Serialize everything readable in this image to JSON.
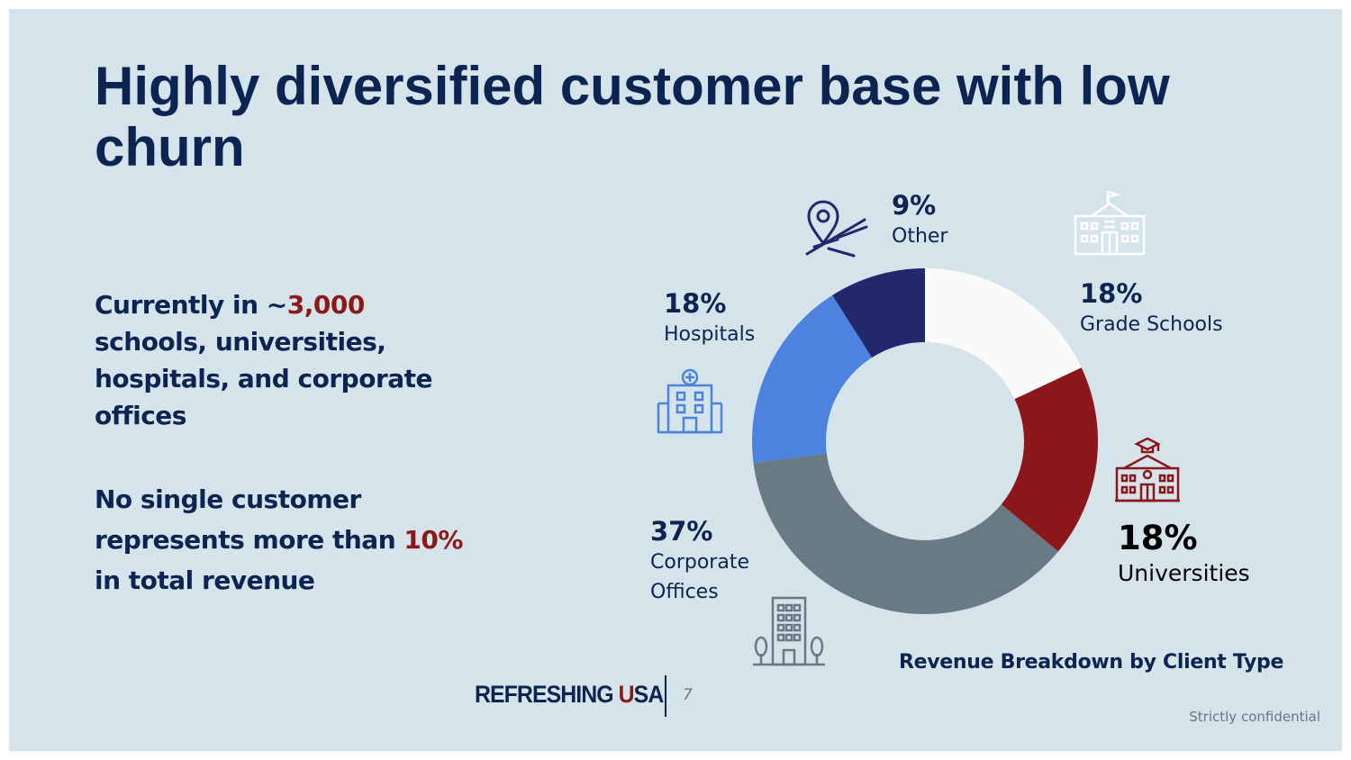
{
  "title": "Highly diversified customer base with low churn",
  "left_text": {
    "p1_prefix": "Currently in ~",
    "p1_highlight": "3,000",
    "p1_suffix": " schools, universities, hospitals, and corporate offices",
    "p2_prefix": "No single customer represents more than ",
    "p2_highlight": "10%",
    "p2_suffix": " in total revenue"
  },
  "colors": {
    "navy": "#0c2452",
    "red": "#8c1919",
    "grade_schools": "#fafafa",
    "universities": "#8b171b",
    "corporate_offices": "#697a83",
    "hospitals": "#4c83df",
    "other": "#23286e"
  },
  "chart_data": {
    "type": "pie",
    "title": "Revenue Breakdown by Client Type",
    "donut": true,
    "slices": [
      {
        "label": "Grade Schools",
        "value": 18,
        "value_label": "18%",
        "color": "#fafafa",
        "icon": "school-building-icon"
      },
      {
        "label": "Universities",
        "value": 18,
        "value_label": "18%",
        "color": "#8b171b",
        "icon": "university-building-icon"
      },
      {
        "label": "Corporate Offices",
        "value": 37,
        "value_label": "37%",
        "color": "#697a83",
        "icon": "office-tower-icon"
      },
      {
        "label": "Hospitals",
        "value": 18,
        "value_label": "18%",
        "color": "#4c83df",
        "icon": "hospital-icon"
      },
      {
        "label": "Other",
        "value": 9,
        "value_label": "9%",
        "color": "#23286e",
        "icon": "map-pin-route-icon"
      }
    ]
  },
  "labels": {
    "corporate_line1": "Corporate",
    "corporate_line2": "Offices"
  },
  "footer": {
    "logo_part1": "REFRESHING ",
    "logo_u": "U",
    "logo_rest": "SA",
    "page_number": "7",
    "confidential": "Strictly confidential"
  }
}
